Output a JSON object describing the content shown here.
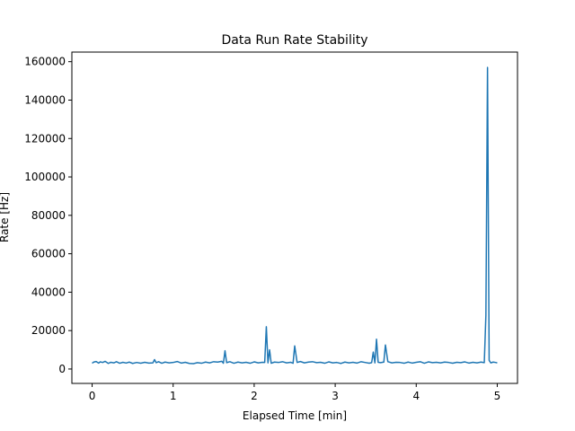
{
  "chart_data": {
    "type": "line",
    "title": "Data Run Rate Stability",
    "xlabel": "Elapsed Time [min]",
    "ylabel": "Rate [Hz]",
    "xlim": [
      -0.25,
      5.25
    ],
    "ylim": [
      -7500,
      165000
    ],
    "x_ticks": [
      0,
      1,
      2,
      3,
      4,
      5
    ],
    "x_tick_labels": [
      "0",
      "1",
      "2",
      "3",
      "4",
      "5"
    ],
    "y_ticks": [
      0,
      20000,
      40000,
      60000,
      80000,
      100000,
      120000,
      140000,
      160000
    ],
    "y_tick_labels": [
      "0",
      "20000",
      "40000",
      "60000",
      "80000",
      "100000",
      "120000",
      "140000",
      "160000"
    ],
    "grid": false,
    "colors": {
      "line": "#1f77b4"
    },
    "series": [
      {
        "x": [
          0.0,
          0.02,
          0.05,
          0.08,
          0.1,
          0.13,
          0.16,
          0.2,
          0.23,
          0.27,
          0.3,
          0.34,
          0.38,
          0.42,
          0.46,
          0.5,
          0.55,
          0.6,
          0.65,
          0.7,
          0.75,
          0.77,
          0.79,
          0.82,
          0.86,
          0.9,
          0.95,
          1.0,
          1.05,
          1.1,
          1.15,
          1.2,
          1.25,
          1.3,
          1.35,
          1.4,
          1.45,
          1.5,
          1.55,
          1.6,
          1.62,
          1.64,
          1.66,
          1.7,
          1.75,
          1.8,
          1.85,
          1.9,
          1.95,
          2.0,
          2.05,
          2.1,
          2.13,
          2.15,
          2.17,
          2.19,
          2.21,
          2.25,
          2.3,
          2.35,
          2.4,
          2.45,
          2.48,
          2.5,
          2.53,
          2.57,
          2.62,
          2.67,
          2.72,
          2.77,
          2.82,
          2.87,
          2.92,
          2.97,
          3.02,
          3.07,
          3.12,
          3.17,
          3.22,
          3.27,
          3.32,
          3.37,
          3.42,
          3.45,
          3.47,
          3.49,
          3.51,
          3.53,
          3.56,
          3.6,
          3.62,
          3.65,
          3.7,
          3.75,
          3.8,
          3.85,
          3.9,
          3.95,
          4.0,
          4.05,
          4.1,
          4.15,
          4.2,
          4.25,
          4.3,
          4.35,
          4.4,
          4.45,
          4.5,
          4.55,
          4.6,
          4.65,
          4.7,
          4.75,
          4.8,
          4.84,
          4.86,
          4.88,
          4.9,
          4.92,
          4.95,
          4.98,
          5.0
        ],
        "values": [
          3000,
          3600,
          3900,
          3100,
          3700,
          3400,
          4000,
          2900,
          3500,
          3200,
          3800,
          3000,
          3500,
          3100,
          3600,
          2900,
          3400,
          3000,
          3500,
          3100,
          3200,
          4900,
          3300,
          3800,
          3000,
          3600,
          3200,
          3400,
          3900,
          3100,
          3500,
          2900,
          2800,
          3300,
          3000,
          3600,
          3200,
          3800,
          3600,
          4000,
          3000,
          9500,
          3300,
          3800,
          3000,
          3600,
          3200,
          3500,
          3000,
          3700,
          3200,
          3500,
          3400,
          22000,
          3200,
          10000,
          3000,
          3600,
          3400,
          3800,
          3200,
          3500,
          3000,
          12000,
          3400,
          3900,
          3200,
          3600,
          3800,
          3300,
          3500,
          3000,
          3700,
          3200,
          3400,
          2900,
          3600,
          3200,
          3500,
          3100,
          3800,
          3400,
          3000,
          3300,
          8800,
          3200,
          15500,
          3500,
          3300,
          3600,
          12500,
          3800,
          3200,
          3500,
          3400,
          3000,
          3600,
          3100,
          3500,
          3800,
          3000,
          3700,
          3300,
          3500,
          3200,
          3600,
          3400,
          3000,
          3500,
          3300,
          3700,
          3100,
          3500,
          3200,
          3600,
          3300,
          28000,
          157000,
          4500,
          3200,
          3600,
          3400,
          3200
        ]
      }
    ]
  }
}
